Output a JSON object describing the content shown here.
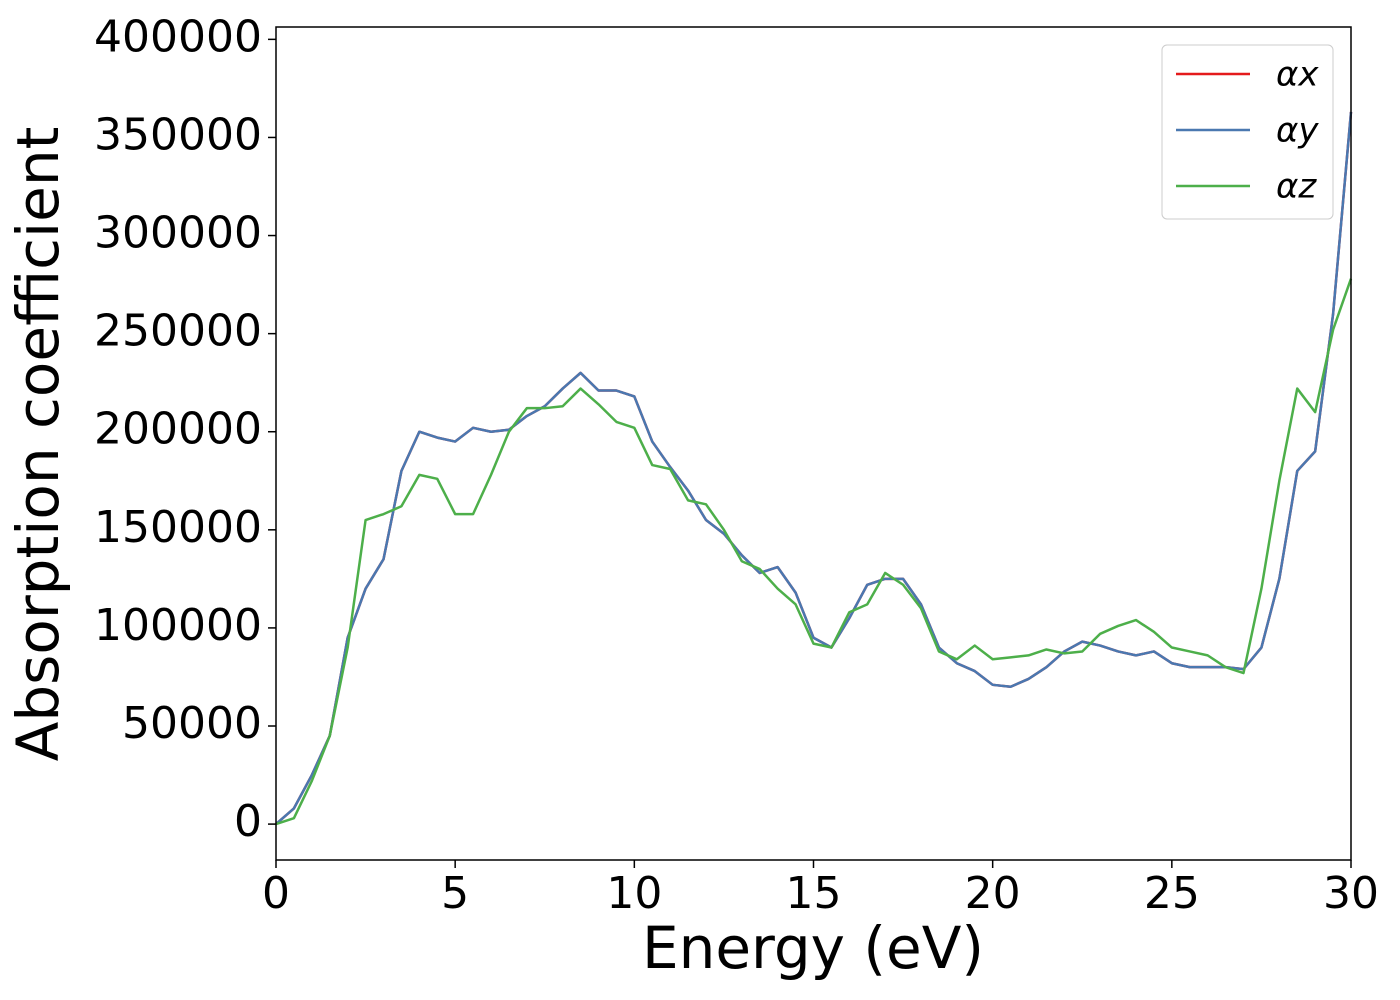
{
  "chart_data": {
    "type": "line",
    "x_label": "Energy (eV)",
    "y_label": "Absorption coefficient",
    "x": [
      0,
      0.5,
      1,
      1.5,
      2,
      2.5,
      3,
      3.5,
      4,
      4.5,
      5,
      5.5,
      6,
      6.5,
      7,
      7.5,
      8,
      8.5,
      9,
      9.5,
      10,
      10.5,
      11,
      11.5,
      12,
      12.5,
      13,
      13.5,
      14,
      14.5,
      15,
      15.5,
      16,
      16.5,
      17,
      17.5,
      18,
      18.5,
      19,
      19.5,
      20,
      20.5,
      21,
      21.5,
      22,
      22.5,
      23,
      23.5,
      24,
      24.5,
      25,
      25.5,
      26,
      26.5,
      27,
      27.5,
      28,
      28.5,
      29,
      29.5,
      30
    ],
    "series": [
      {
        "name": "αx",
        "color": "#e41a1c",
        "values": [
          0,
          8000,
          25000,
          45000,
          95000,
          120000,
          135000,
          180000,
          200000,
          197000,
          195000,
          202000,
          200000,
          201000,
          208000,
          213000,
          222000,
          230000,
          221000,
          221000,
          218000,
          195000,
          182000,
          170000,
          155000,
          148000,
          137000,
          128000,
          131000,
          118000,
          95000,
          90000,
          105000,
          122000,
          125000,
          125000,
          112000,
          90000,
          82000,
          78000,
          71000,
          70000,
          74000,
          80000,
          88000,
          93000,
          91000,
          88000,
          86000,
          88000,
          82000,
          80000,
          80000,
          80000,
          79000,
          90000,
          125000,
          180000,
          190000,
          260000,
          363000
        ]
      },
      {
        "name": "αy",
        "color": "#4a78b0",
        "values": [
          0,
          8000,
          25000,
          45000,
          95000,
          120000,
          135000,
          180000,
          200000,
          197000,
          195000,
          202000,
          200000,
          201000,
          208000,
          213000,
          222000,
          230000,
          221000,
          221000,
          218000,
          195000,
          182000,
          170000,
          155000,
          148000,
          137000,
          128000,
          131000,
          118000,
          95000,
          90000,
          105000,
          122000,
          125000,
          125000,
          112000,
          90000,
          82000,
          78000,
          71000,
          70000,
          74000,
          80000,
          88000,
          93000,
          91000,
          88000,
          86000,
          88000,
          82000,
          80000,
          80000,
          80000,
          79000,
          90000,
          125000,
          180000,
          190000,
          260000,
          363000
        ]
      },
      {
        "name": "αz",
        "color": "#4daf4a",
        "values": [
          0,
          3000,
          22000,
          45000,
          90000,
          155000,
          158000,
          162000,
          178000,
          176000,
          158000,
          158000,
          178000,
          200000,
          212000,
          212000,
          213000,
          222000,
          214000,
          205000,
          202000,
          183000,
          181000,
          165000,
          163000,
          150000,
          134000,
          130000,
          120000,
          112000,
          92000,
          90000,
          108000,
          112000,
          128000,
          122000,
          110000,
          88000,
          84000,
          91000,
          84000,
          85000,
          86000,
          89000,
          87000,
          88000,
          97000,
          101000,
          104000,
          98000,
          90000,
          88000,
          86000,
          80000,
          77000,
          120000,
          175000,
          222000,
          210000,
          252000,
          278000
        ]
      }
    ],
    "xlim": [
      0,
      30
    ],
    "xticks": [
      0,
      5,
      10,
      15,
      20,
      25,
      30
    ],
    "ylim": [
      -18300,
      406300
    ],
    "yticks": [
      0,
      50000,
      100000,
      150000,
      200000,
      250000,
      300000,
      350000,
      400000
    ],
    "grid": false,
    "legend": "upper right"
  }
}
